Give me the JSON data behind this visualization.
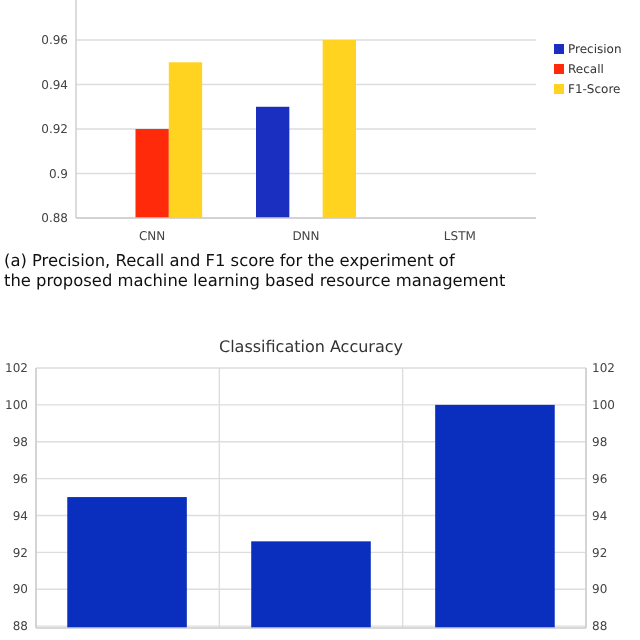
{
  "chart_data": [
    {
      "type": "bar",
      "categories": [
        "CNN",
        "DNN",
        "LSTM"
      ],
      "series": [
        {
          "name": "Precision",
          "color": "#1a2fc0",
          "values": [
            null,
            0.93,
            null
          ]
        },
        {
          "name": "Recall",
          "color": "#ff2a0a",
          "values": [
            0.92,
            null,
            null
          ]
        },
        {
          "name": "F1-Score",
          "color": "#ffd320",
          "values": [
            0.95,
            0.96,
            null
          ]
        }
      ],
      "ylim": [
        0.88,
        0.978
      ],
      "yticks": [
        {
          "value": 0.88,
          "label": "0.88"
        },
        {
          "value": 0.9,
          "label": "0.9"
        },
        {
          "value": 0.92,
          "label": "0.92"
        },
        {
          "value": 0.94,
          "label": "0.94"
        },
        {
          "value": 0.96,
          "label": "0.96"
        }
      ],
      "grid": "y",
      "legend": "right",
      "annotations": [
        "(a) Precision, Recall and F1 score for the experiment of the proposed machine learning based resource management"
      ]
    },
    {
      "type": "bar",
      "title": "Classification Accuracy",
      "categories": [
        null,
        null,
        null
      ],
      "series": [
        {
          "color": "#0a2ebd",
          "values": [
            95,
            92.6,
            100
          ]
        }
      ],
      "ylim": [
        87.9,
        102
      ],
      "yticks": [
        88,
        90,
        92,
        94,
        96,
        98,
        100,
        102
      ],
      "y2lim": [
        87.9,
        102
      ],
      "y2ticks": [
        88,
        90,
        92,
        94,
        96,
        98,
        100,
        102
      ],
      "grid": true
    }
  ]
}
